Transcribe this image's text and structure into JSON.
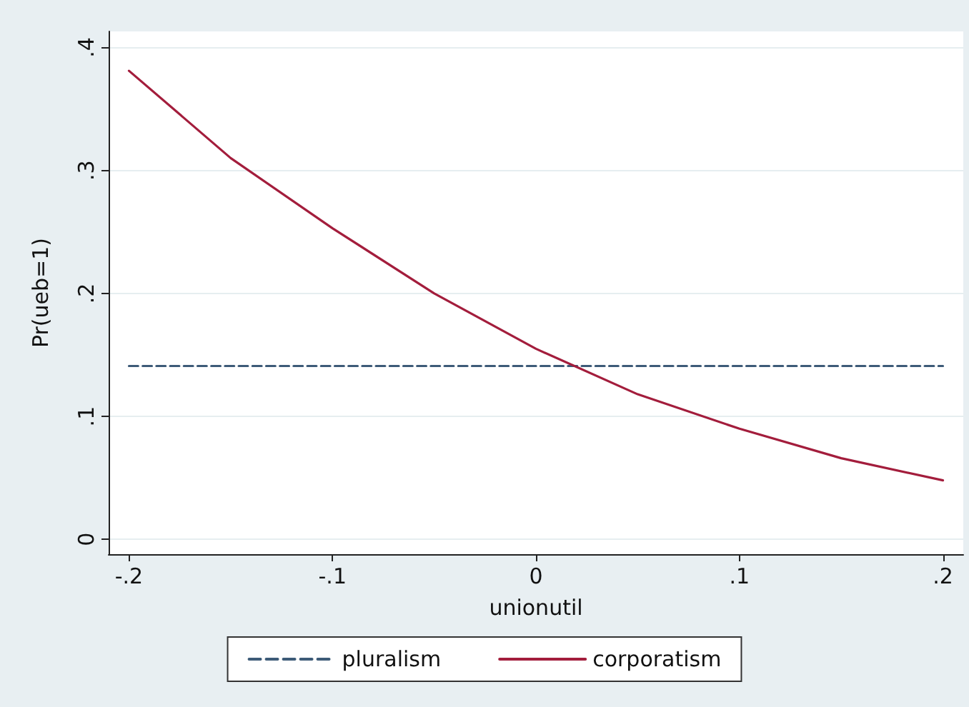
{
  "chart_data": {
    "type": "line",
    "xlabel": "unionutil",
    "ylabel": "Pr(ueb=1)",
    "xlim": [
      -0.21,
      0.21
    ],
    "ylim": [
      -0.012,
      0.413
    ],
    "xticks": [
      {
        "value": -0.2,
        "label": "-.2"
      },
      {
        "value": -0.1,
        "label": "-.1"
      },
      0,
      {
        "value": 0.1,
        "label": ".1"
      },
      {
        "value": 0.2,
        "label": ".2"
      }
    ],
    "yticks": [
      0,
      {
        "value": 0.1,
        "label": ".1"
      },
      {
        "value": 0.2,
        "label": ".2"
      },
      {
        "value": 0.3,
        "label": ".3"
      },
      {
        "value": 0.4,
        "label": ".4"
      }
    ],
    "grid": "y",
    "legend": "bottom",
    "marker": "none",
    "series": [
      {
        "name": "pluralism",
        "color": "#3d5b78",
        "line_style": "dashed",
        "x": [
          -0.2,
          0.2
        ],
        "values": [
          0.141,
          0.141
        ]
      },
      {
        "name": "corporatism",
        "color": "#a31d3c",
        "line_style": "solid",
        "x": [
          -0.2,
          -0.15,
          -0.1,
          -0.05,
          0,
          0.05,
          0.1,
          0.15,
          0.2
        ],
        "values": [
          0.381,
          0.31,
          0.253,
          0.2,
          0.155,
          0.118,
          0.09,
          0.066,
          0.048
        ]
      }
    ]
  }
}
